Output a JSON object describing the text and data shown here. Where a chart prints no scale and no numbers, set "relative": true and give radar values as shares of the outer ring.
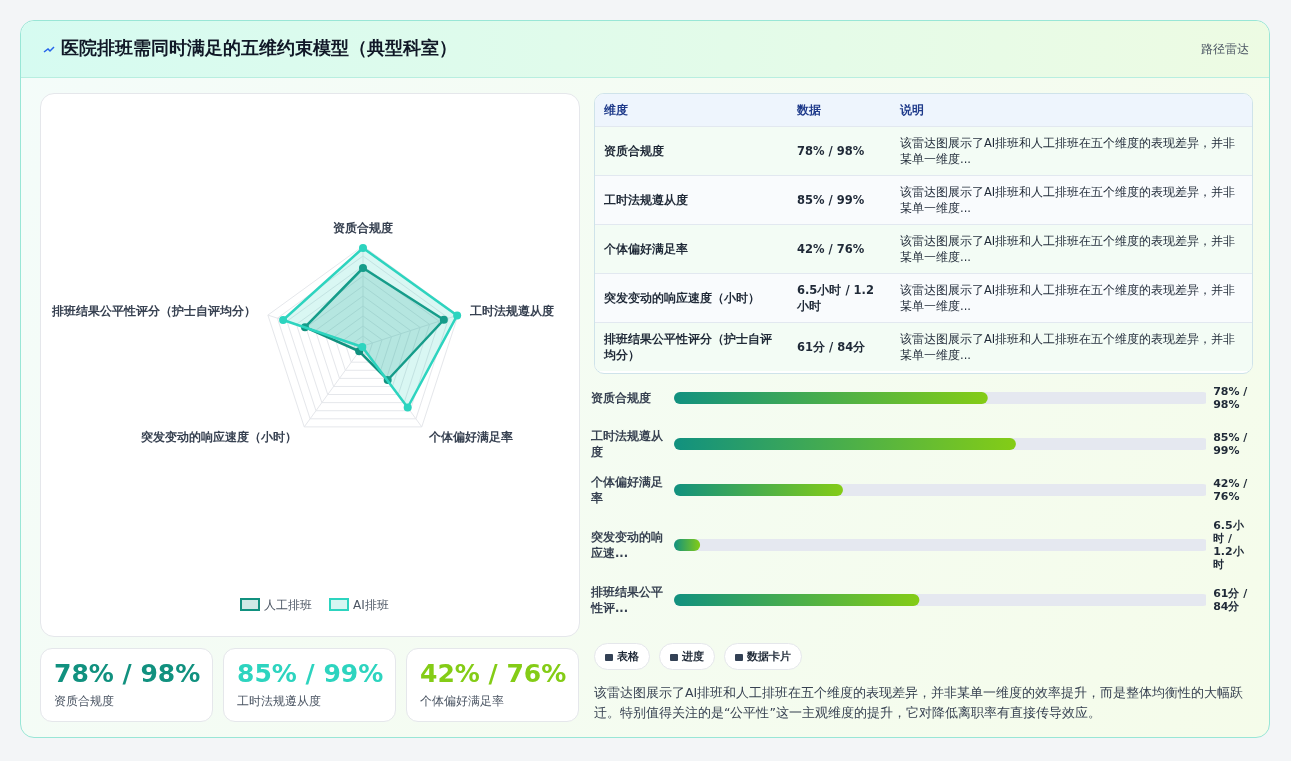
{
  "chart_data": [
    {
      "type": "other",
      "title": "医院排班需同时满足的五维约束模型（典型科室）",
      "subtitle": "路径雷达"
    },
    {
      "type": "radar",
      "categories": [
        "资质合规度",
        "工时法规遵从度",
        "个体偏好满足率",
        "突发变动的响应速度（小时）",
        "排班结果公平性评分（护士自评均分）"
      ],
      "relative": true,
      "legend": "bottom",
      "marker": "circle",
      "series": [
        {
          "name": "人工排班",
          "color": "#11917f",
          "values": [
            0.78,
            0.85,
            0.42,
            0.065,
            0.61
          ]
        },
        {
          "name": "AI排班",
          "color": "#2dd4bf",
          "values": [
            0.98,
            0.99,
            0.76,
            0.012,
            0.84
          ]
        }
      ]
    },
    {
      "type": "other",
      "annotations": [
        "维度",
        "数据",
        "说明",
        "资质合规度",
        "78% / 98%",
        "该雷达图展示了AI排班和人工排班在五个维度的表现差异，并非某单一维度...",
        "工时法规遵从度",
        "85% / 99%",
        "该雷达图展示了AI排班和人工排班在五个维度的表现差异，并非某单一维度...",
        "个体偏好满足率",
        "42% / 76%",
        "该雷达图展示了AI排班和人工排班在五个维度的表现差异，并非某单一维度...",
        "突发变动的响应速度（小时）",
        "6.5小时 / 1.2小时",
        "该雷达图展示了AI排班和人工排班在五个维度的表现差异，并非某单一维度...",
        "排班结果公平性评分（护士自评均分）",
        "61分 / 84分",
        "该雷达图展示了AI排班和人工排班在五个维度的表现差异，并非某单一维度..."
      ]
    },
    {
      "type": "bar",
      "orientation": "horizontal",
      "xlim": [
        0,
        133
      ],
      "color": "#11917f",
      "categories": [
        "资质合规度",
        "工时法规遵从度",
        "个体偏好满足率",
        "突发变动的响应速...",
        "排班结果公平性评..."
      ],
      "values": [
        78,
        85,
        42,
        6.5,
        61
      ],
      "value_labels": [
        "78% / 98%",
        "85% / 99%",
        "42% / 76%",
        "6.5小时 / 1.2小时",
        "61分 / 84分"
      ]
    },
    {
      "type": "other",
      "colors": [
        "#11917f",
        "#2dd4bf",
        "#84cc16"
      ],
      "annotations": [
        "78% / 98%",
        "资质合规度",
        "85% / 99%",
        "工时法规遵从度",
        "42% / 76%",
        "个体偏好满足率"
      ]
    },
    {
      "type": "other",
      "annotations": [
        "表格",
        "进度",
        "数据卡片",
        "该雷达图展示了AI排班和人工排班在五个维度的表现差异，并非某单一维度的效率提升，而是整体均衡性的大幅跃迁。特别值得关注的是“公平性”这一主观维度的提升，它对降低离职率有直接传导效应。"
      ]
    }
  ]
}
